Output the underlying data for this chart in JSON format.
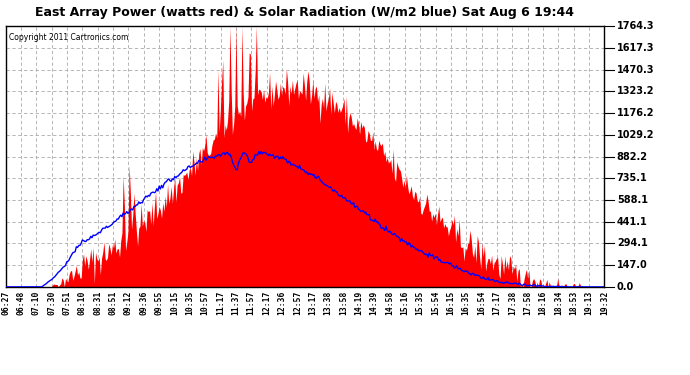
{
  "title": "East Array Power (watts red) & Solar Radiation (W/m2 blue) Sat Aug 6 19:44",
  "copyright": "Copyright 2011 Cartronics.com",
  "background_color": "#ffffff",
  "plot_bg_color": "#ffffff",
  "yticks": [
    0.0,
    147.0,
    294.1,
    441.1,
    588.1,
    735.1,
    882.2,
    1029.2,
    1176.2,
    1323.2,
    1470.3,
    1617.3,
    1764.3
  ],
  "ymax": 1764.3,
  "red_color": "#ff0000",
  "blue_color": "#0000ff",
  "grid_color": "#aaaaaa",
  "xtick_labels": [
    "06:27",
    "06:48",
    "07:10",
    "07:30",
    "07:51",
    "08:10",
    "08:31",
    "08:51",
    "09:12",
    "09:36",
    "09:55",
    "10:15",
    "10:35",
    "10:57",
    "11:17",
    "11:37",
    "11:57",
    "12:17",
    "12:36",
    "12:57",
    "13:17",
    "13:38",
    "13:58",
    "14:19",
    "14:39",
    "14:58",
    "15:16",
    "15:35",
    "15:54",
    "16:15",
    "16:35",
    "16:54",
    "17:17",
    "17:38",
    "17:58",
    "18:16",
    "18:34",
    "18:53",
    "19:13",
    "19:32"
  ]
}
